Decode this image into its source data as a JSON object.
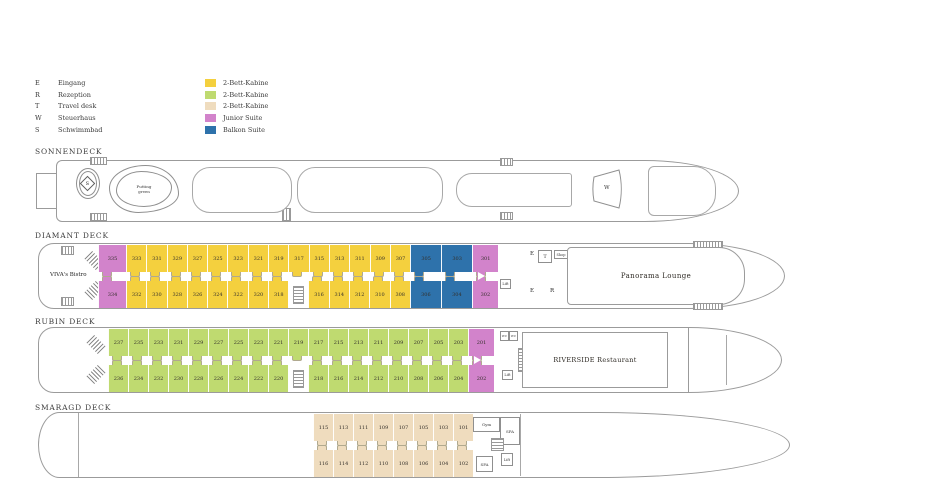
{
  "legend": {
    "keys": [
      {
        "letter": "E",
        "label": "Eingang"
      },
      {
        "letter": "R",
        "label": "Rezeption"
      },
      {
        "letter": "T",
        "label": "Travel desk"
      },
      {
        "letter": "W",
        "label": "Steuerhaus"
      },
      {
        "letter": "S",
        "label": "Schwimmbad"
      }
    ],
    "categories": [
      {
        "label": "2-Bett-Kabine",
        "color": "#f4d03e"
      },
      {
        "label": "2-Bett-Kabine",
        "color": "#bfda70"
      },
      {
        "label": "2-Bett-Kabine",
        "color": "#efdcbe"
      },
      {
        "label": "Junior Suite",
        "color": "#d283cb"
      },
      {
        "label": "Balkon Suite",
        "color": "#2e72ab"
      }
    ]
  },
  "cabin_types": {
    "k2a": "#f4d03e",
    "k2b": "#bfda70",
    "k2c": "#efdcbe",
    "js": "#d283cb",
    "jsw": "#d283cb",
    "bs": "#2e72ab"
  },
  "decks": {
    "sonnendeck": {
      "title": "SONNENDECK",
      "pool_letter": "S",
      "putting_green": "Putting green",
      "wheelhouse_letter": "W"
    },
    "diamant": {
      "title": "DIAMANT DECK",
      "bistro": "VIVA's Bistro",
      "lounge": "Panorama Lounge",
      "shop": "Shop",
      "lift": "Lift",
      "entrance_top": "E",
      "travel_desk": "T",
      "reception": "R",
      "entrance_bottom": "E",
      "rows": {
        "top": [
          {
            "n": "335",
            "t": "jsw"
          },
          {
            "n": "333",
            "t": "k2a"
          },
          {
            "n": "331",
            "t": "k2a"
          },
          {
            "n": "329",
            "t": "k2a"
          },
          {
            "n": "327",
            "t": "k2a"
          },
          {
            "n": "325",
            "t": "k2a"
          },
          {
            "n": "323",
            "t": "k2a"
          },
          {
            "n": "321",
            "t": "k2a"
          },
          {
            "n": "319",
            "t": "k2a"
          },
          {
            "n": "317",
            "t": "k2a"
          },
          {
            "n": "315",
            "t": "k2a"
          },
          {
            "n": "313",
            "t": "k2a"
          },
          {
            "n": "311",
            "t": "k2a"
          },
          {
            "n": "309",
            "t": "k2a"
          },
          {
            "n": "307",
            "t": "k2a"
          },
          {
            "n": "305",
            "t": "bs"
          },
          {
            "n": "303",
            "t": "bs"
          },
          {
            "n": "301",
            "t": "js"
          }
        ],
        "bottom": [
          {
            "n": "334",
            "t": "jsw"
          },
          {
            "n": "332",
            "t": "k2a"
          },
          {
            "n": "330",
            "t": "k2a"
          },
          {
            "n": "328",
            "t": "k2a"
          },
          {
            "n": "326",
            "t": "k2a"
          },
          {
            "n": "324",
            "t": "k2a"
          },
          {
            "n": "322",
            "t": "k2a"
          },
          {
            "n": "320",
            "t": "k2a"
          },
          {
            "n": "318",
            "t": "k2a"
          },
          {
            "gap": true
          },
          {
            "n": "316",
            "t": "k2a"
          },
          {
            "n": "314",
            "t": "k2a"
          },
          {
            "n": "312",
            "t": "k2a"
          },
          {
            "n": "310",
            "t": "k2a"
          },
          {
            "n": "308",
            "t": "k2a"
          },
          {
            "n": "306",
            "t": "bs"
          },
          {
            "n": "304",
            "t": "bs"
          },
          {
            "n": "302",
            "t": "js"
          }
        ]
      }
    },
    "rubin": {
      "title": "RUBIN DECK",
      "restaurant": "RIVERSIDE Restaurant",
      "wc_left": "WC",
      "wc_right": "WC",
      "lift": "Lift",
      "rows": {
        "top": [
          {
            "n": "237",
            "t": "k2b"
          },
          {
            "n": "235",
            "t": "k2b"
          },
          {
            "n": "233",
            "t": "k2b"
          },
          {
            "n": "231",
            "t": "k2b"
          },
          {
            "n": "229",
            "t": "k2b"
          },
          {
            "n": "227",
            "t": "k2b"
          },
          {
            "n": "225",
            "t": "k2b"
          },
          {
            "n": "223",
            "t": "k2b"
          },
          {
            "n": "221",
            "t": "k2b"
          },
          {
            "n": "219",
            "t": "k2b"
          },
          {
            "n": "217",
            "t": "k2b"
          },
          {
            "n": "215",
            "t": "k2b"
          },
          {
            "n": "213",
            "t": "k2b"
          },
          {
            "n": "211",
            "t": "k2b"
          },
          {
            "n": "209",
            "t": "k2b"
          },
          {
            "n": "207",
            "t": "k2b"
          },
          {
            "n": "205",
            "t": "k2b"
          },
          {
            "n": "203",
            "t": "k2b"
          },
          {
            "n": "201",
            "t": "js"
          }
        ],
        "bottom": [
          {
            "n": "236",
            "t": "k2b"
          },
          {
            "n": "234",
            "t": "k2b"
          },
          {
            "n": "232",
            "t": "k2b"
          },
          {
            "n": "230",
            "t": "k2b"
          },
          {
            "n": "228",
            "t": "k2b"
          },
          {
            "n": "226",
            "t": "k2b"
          },
          {
            "n": "224",
            "t": "k2b"
          },
          {
            "n": "222",
            "t": "k2b"
          },
          {
            "n": "220",
            "t": "k2b"
          },
          {
            "gap": true
          },
          {
            "n": "218",
            "t": "k2b"
          },
          {
            "n": "216",
            "t": "k2b"
          },
          {
            "n": "214",
            "t": "k2b"
          },
          {
            "n": "212",
            "t": "k2b"
          },
          {
            "n": "210",
            "t": "k2b"
          },
          {
            "n": "208",
            "t": "k2b"
          },
          {
            "n": "206",
            "t": "k2b"
          },
          {
            "n": "204",
            "t": "k2b"
          },
          {
            "n": "202",
            "t": "js"
          }
        ]
      }
    },
    "smaragd": {
      "title": "SMARAGD DECK",
      "gym": "Gym",
      "spa_upper": "SPA",
      "spa_lower": "SPA",
      "lift": "Lift",
      "rows": {
        "top": [
          {
            "n": "115",
            "t": "k2c"
          },
          {
            "n": "113",
            "t": "k2c"
          },
          {
            "n": "111",
            "t": "k2c"
          },
          {
            "n": "109",
            "t": "k2c"
          },
          {
            "n": "107",
            "t": "k2c"
          },
          {
            "n": "105",
            "t": "k2c"
          },
          {
            "n": "103",
            "t": "k2c"
          },
          {
            "n": "101",
            "t": "k2c"
          }
        ],
        "bottom": [
          {
            "n": "116",
            "t": "k2c"
          },
          {
            "n": "114",
            "t": "k2c"
          },
          {
            "n": "112",
            "t": "k2c"
          },
          {
            "n": "110",
            "t": "k2c"
          },
          {
            "n": "108",
            "t": "k2c"
          },
          {
            "n": "106",
            "t": "k2c"
          },
          {
            "n": "104",
            "t": "k2c"
          },
          {
            "n": "102",
            "t": "k2c"
          }
        ]
      }
    }
  }
}
